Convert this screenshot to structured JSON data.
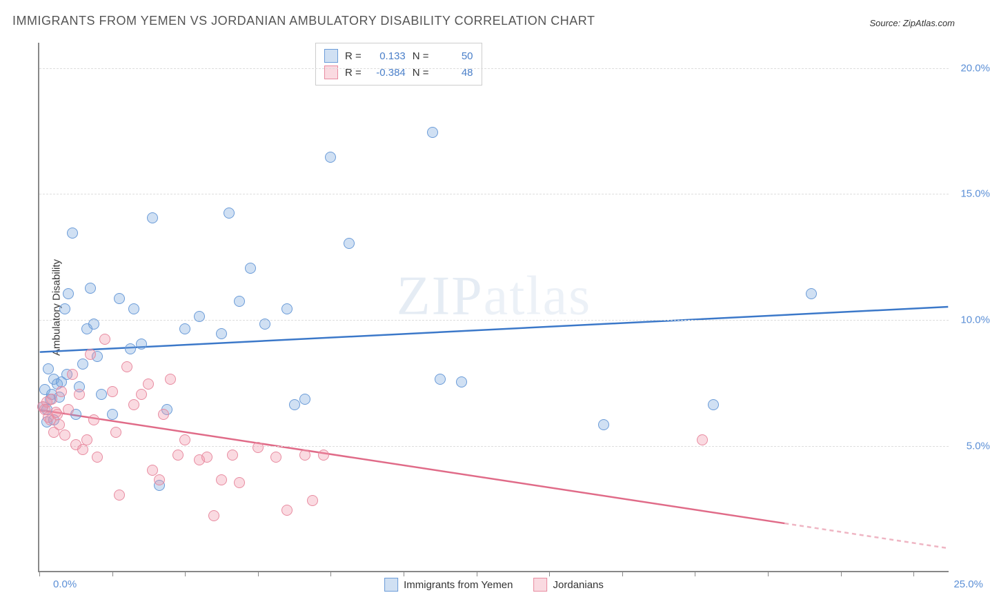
{
  "title": "IMMIGRANTS FROM YEMEN VS JORDANIAN AMBULATORY DISABILITY CORRELATION CHART",
  "source": "Source: ZipAtlas.com",
  "watermark_bold": "ZIP",
  "watermark_light": "atlas",
  "y_axis_title": "Ambulatory Disability",
  "chart": {
    "type": "scatter",
    "background_color": "#ffffff",
    "grid_color": "#dddddd",
    "axis_color": "#888888",
    "xlim": [
      0,
      25
    ],
    "ylim": [
      0,
      21
    ],
    "x_tick_positions": [
      0,
      2,
      4,
      6,
      8,
      10,
      12,
      14,
      16,
      18,
      20,
      22,
      24
    ],
    "x_label_0": "0.0%",
    "x_label_max": "25.0%",
    "y_gridlines": [
      5,
      10,
      15,
      20
    ],
    "y_labels": [
      "5.0%",
      "10.0%",
      "15.0%",
      "20.0%"
    ],
    "marker_radius": 8,
    "marker_border_width": 1.5,
    "trend_line_width": 2.5,
    "series": [
      {
        "name": "Immigrants from Yemen",
        "fill_color": "rgba(120, 165, 220, 0.35)",
        "border_color": "#6a9bd8",
        "line_color": "#3b78c9",
        "r_value": "0.133",
        "n_value": "50",
        "trend": {
          "x1": 0,
          "y1": 8.7,
          "x2": 25,
          "y2": 10.5
        },
        "points": [
          [
            0.1,
            6.5
          ],
          [
            0.2,
            6.4
          ],
          [
            0.15,
            7.2
          ],
          [
            0.3,
            6.8
          ],
          [
            0.35,
            7.0
          ],
          [
            0.4,
            7.6
          ],
          [
            0.25,
            8.0
          ],
          [
            0.5,
            7.4
          ],
          [
            0.6,
            7.5
          ],
          [
            0.7,
            10.4
          ],
          [
            0.8,
            11.0
          ],
          [
            0.9,
            13.4
          ],
          [
            1.0,
            6.2
          ],
          [
            1.1,
            7.3
          ],
          [
            1.3,
            9.6
          ],
          [
            1.4,
            11.2
          ],
          [
            1.6,
            8.5
          ],
          [
            1.7,
            7.0
          ],
          [
            2.0,
            6.2
          ],
          [
            2.2,
            10.8
          ],
          [
            2.5,
            8.8
          ],
          [
            2.6,
            10.4
          ],
          [
            2.8,
            9.0
          ],
          [
            3.1,
            14.0
          ],
          [
            3.3,
            3.4
          ],
          [
            3.5,
            6.4
          ],
          [
            4.0,
            9.6
          ],
          [
            4.4,
            10.1
          ],
          [
            5.0,
            9.4
          ],
          [
            5.2,
            14.2
          ],
          [
            5.5,
            10.7
          ],
          [
            5.8,
            12.0
          ],
          [
            6.2,
            9.8
          ],
          [
            6.8,
            10.4
          ],
          [
            7.0,
            6.6
          ],
          [
            7.3,
            6.8
          ],
          [
            8.0,
            16.4
          ],
          [
            8.5,
            13.0
          ],
          [
            10.8,
            17.4
          ],
          [
            11.0,
            7.6
          ],
          [
            11.6,
            7.5
          ],
          [
            15.5,
            5.8
          ],
          [
            18.5,
            6.6
          ],
          [
            21.2,
            11.0
          ],
          [
            0.2,
            5.9
          ],
          [
            0.4,
            6.0
          ],
          [
            0.55,
            6.9
          ],
          [
            0.75,
            7.8
          ],
          [
            1.2,
            8.2
          ],
          [
            1.5,
            9.8
          ]
        ]
      },
      {
        "name": "Jordanians",
        "fill_color": "rgba(240, 150, 170, 0.35)",
        "border_color": "#e88ba0",
        "line_color": "#e06b88",
        "r_value": "-0.384",
        "n_value": "48",
        "trend": {
          "x1": 0,
          "y1": 6.4,
          "x2": 25,
          "y2": 0.9
        },
        "trend_dash_from_x": 20.5,
        "points": [
          [
            0.1,
            6.5
          ],
          [
            0.2,
            6.7
          ],
          [
            0.3,
            6.0
          ],
          [
            0.35,
            6.8
          ],
          [
            0.4,
            5.5
          ],
          [
            0.5,
            6.2
          ],
          [
            0.55,
            5.8
          ],
          [
            0.6,
            7.1
          ],
          [
            0.7,
            5.4
          ],
          [
            0.8,
            6.4
          ],
          [
            0.9,
            7.8
          ],
          [
            1.0,
            5.0
          ],
          [
            1.1,
            7.0
          ],
          [
            1.2,
            4.8
          ],
          [
            1.3,
            5.2
          ],
          [
            1.4,
            8.6
          ],
          [
            1.5,
            6.0
          ],
          [
            1.6,
            4.5
          ],
          [
            1.8,
            9.2
          ],
          [
            2.0,
            7.1
          ],
          [
            2.1,
            5.5
          ],
          [
            2.2,
            3.0
          ],
          [
            2.4,
            8.1
          ],
          [
            2.6,
            6.6
          ],
          [
            2.8,
            7.0
          ],
          [
            3.0,
            7.4
          ],
          [
            3.1,
            4.0
          ],
          [
            3.3,
            3.6
          ],
          [
            3.4,
            6.2
          ],
          [
            3.6,
            7.6
          ],
          [
            3.8,
            4.6
          ],
          [
            4.0,
            5.2
          ],
          [
            4.4,
            4.4
          ],
          [
            4.6,
            4.5
          ],
          [
            4.8,
            2.2
          ],
          [
            5.0,
            3.6
          ],
          [
            5.3,
            4.6
          ],
          [
            5.5,
            3.5
          ],
          [
            6.0,
            4.9
          ],
          [
            6.5,
            4.5
          ],
          [
            6.8,
            2.4
          ],
          [
            7.3,
            4.6
          ],
          [
            7.5,
            2.8
          ],
          [
            7.8,
            4.6
          ],
          [
            18.2,
            5.2
          ],
          [
            0.15,
            6.4
          ],
          [
            0.25,
            6.1
          ],
          [
            0.45,
            6.3
          ]
        ]
      }
    ],
    "stat_box": {
      "r_label": "R =",
      "n_label": "N ="
    },
    "legend_swatch_border_blue": "#6a9bd8",
    "legend_swatch_fill_blue": "rgba(120,165,220,0.35)",
    "legend_swatch_border_pink": "#e88ba0",
    "legend_swatch_fill_pink": "rgba(240,150,170,0.35)"
  }
}
